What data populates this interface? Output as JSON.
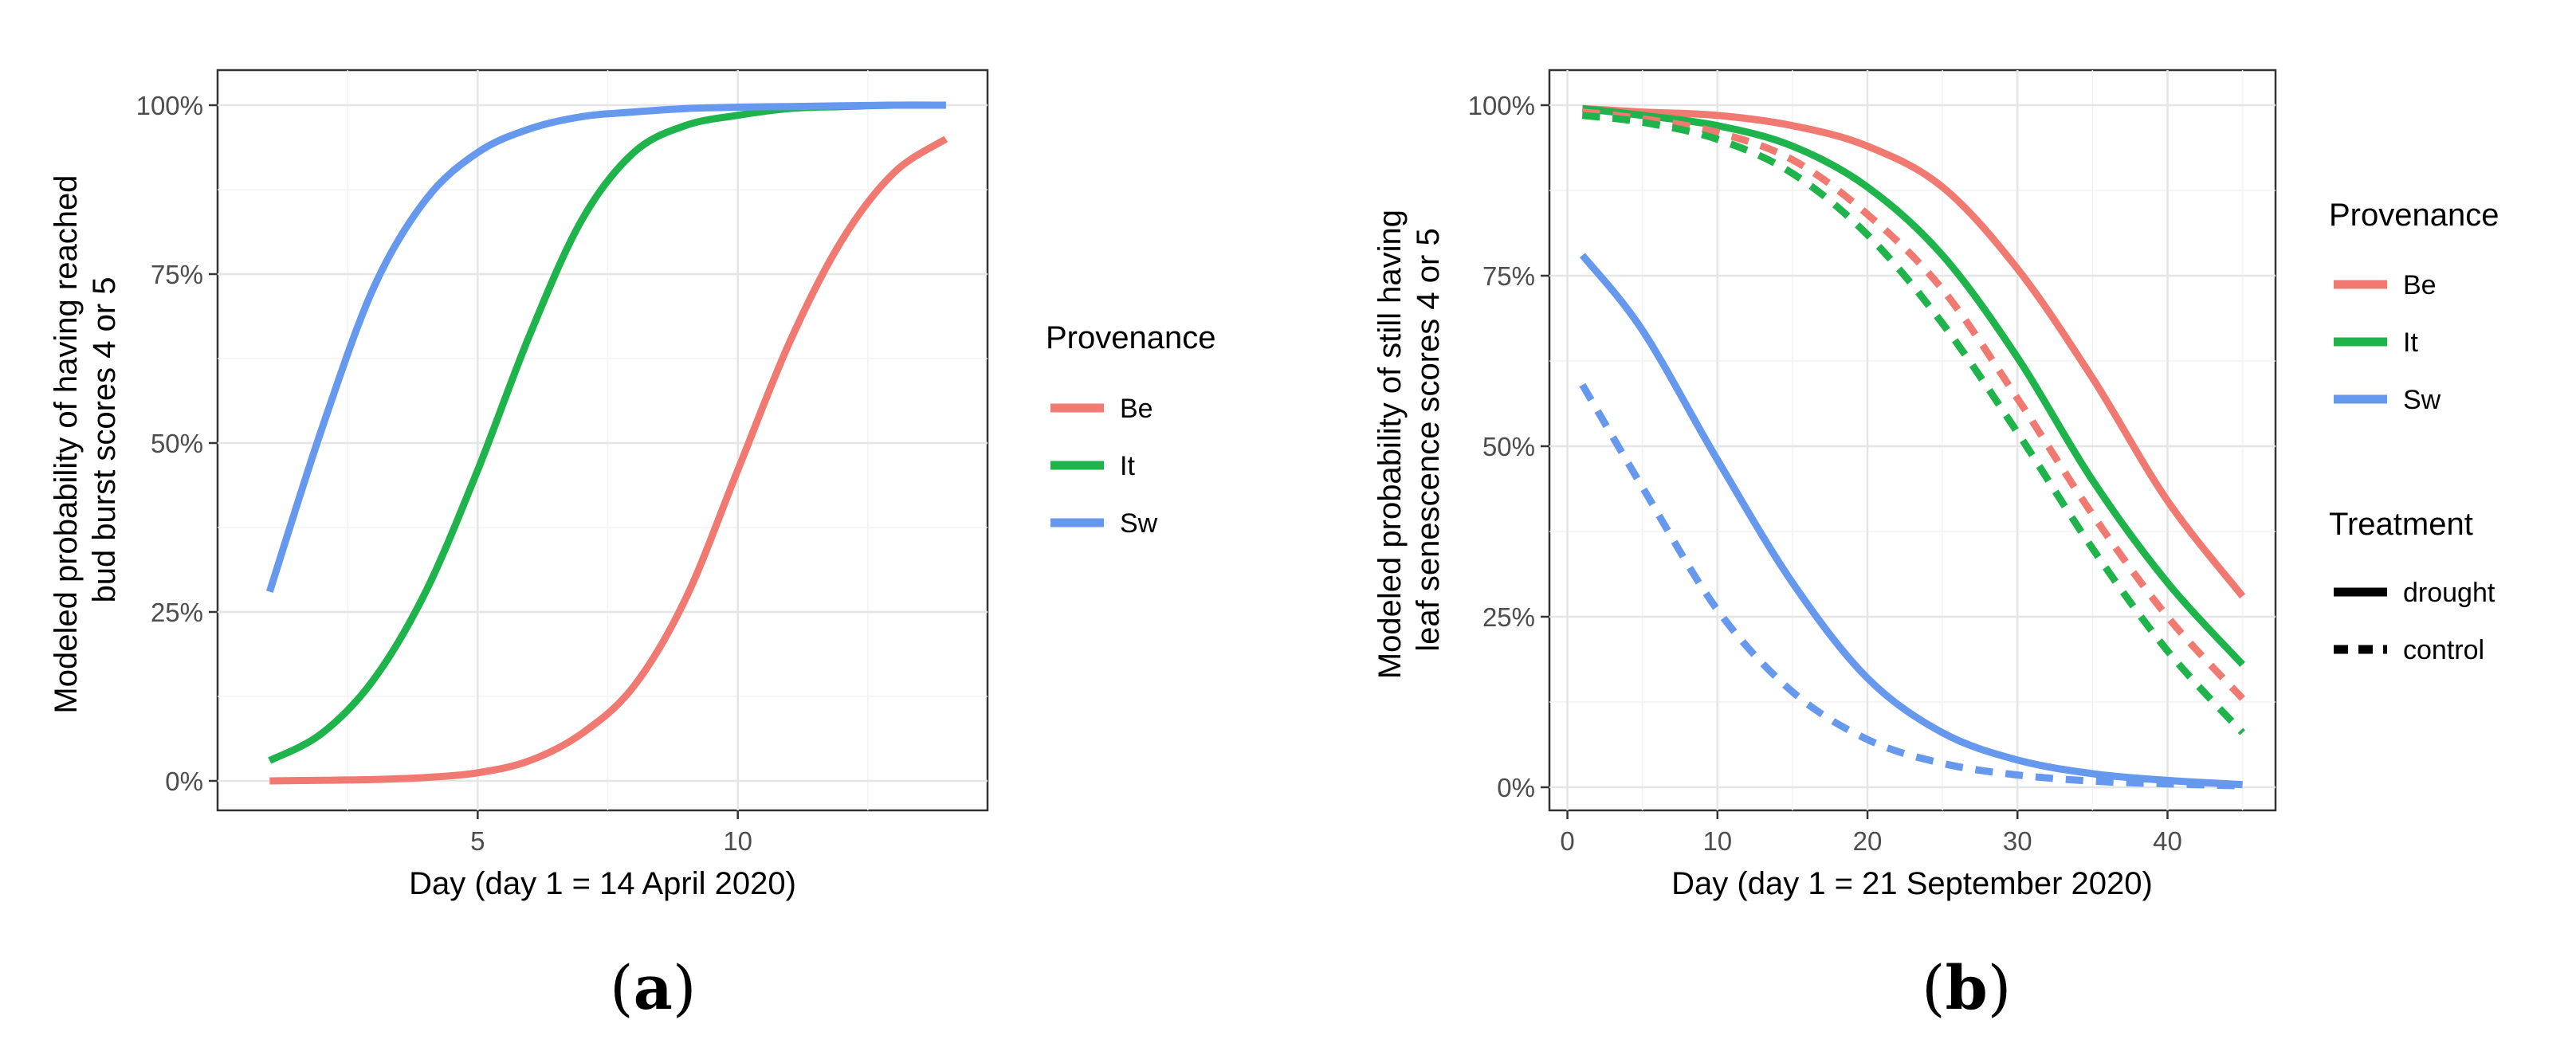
{
  "colors": {
    "Be": "#F07A72",
    "It": "#1FB34B",
    "Sw": "#6699EE"
  },
  "panel_a_label": {
    "open": "(",
    "letter": "a",
    "close": ")"
  },
  "panel_b_label": {
    "open": "(",
    "letter": "b",
    "close": ")"
  },
  "chart_data": [
    {
      "type": "line",
      "panel": "a",
      "title": "",
      "xlabel": "Day (day 1 = 14 April 2020)",
      "ylabel": [
        "Modeled probability of having reached",
        "bud burst scores 4 or 5"
      ],
      "xlim": [
        0,
        14.8
      ],
      "ylim": [
        0,
        1
      ],
      "xticks": [
        5,
        10
      ],
      "xtick_labels": [
        "5",
        "10"
      ],
      "yticks": [
        0,
        0.25,
        0.5,
        0.75,
        1
      ],
      "ytick_labels": [
        "0%",
        "25%",
        "50%",
        "75%",
        "100%"
      ],
      "grid": true,
      "legend": {
        "title": "Provenance",
        "position": "right",
        "entries": [
          "Be",
          "It",
          "Sw"
        ]
      },
      "series": [
        {
          "name": "Be",
          "linestyle": "solid",
          "x": [
            1,
            2,
            3,
            4,
            5,
            6,
            7,
            8,
            9,
            10,
            11,
            12,
            13,
            14
          ],
          "values": [
            0.0,
            0.001,
            0.002,
            0.005,
            0.012,
            0.03,
            0.07,
            0.14,
            0.27,
            0.46,
            0.65,
            0.8,
            0.9,
            0.95
          ]
        },
        {
          "name": "It",
          "linestyle": "solid",
          "x": [
            1,
            2,
            3,
            4,
            5,
            6,
            7,
            8,
            9,
            10,
            11,
            12,
            13,
            14
          ],
          "values": [
            0.03,
            0.07,
            0.15,
            0.28,
            0.46,
            0.66,
            0.83,
            0.93,
            0.97,
            0.985,
            0.995,
            0.998,
            1.0,
            1.0
          ]
        },
        {
          "name": "Sw",
          "linestyle": "solid",
          "x": [
            1,
            2,
            3,
            4,
            5,
            6,
            7,
            8,
            9,
            10,
            11,
            12,
            13,
            14
          ],
          "values": [
            0.28,
            0.52,
            0.73,
            0.86,
            0.93,
            0.965,
            0.983,
            0.99,
            0.995,
            0.997,
            0.998,
            0.999,
            1.0,
            1.0
          ]
        }
      ]
    },
    {
      "type": "line",
      "panel": "b",
      "title": "",
      "xlabel": "Day (day 1 = 21 September 2020)",
      "ylabel": [
        "Modeled probability of still having",
        "leaf senescence scores 4 or 5"
      ],
      "xlim": [
        -1.2,
        47.2
      ],
      "ylim": [
        0,
        1
      ],
      "xticks": [
        0,
        10,
        20,
        30,
        40
      ],
      "xtick_labels": [
        "0",
        "10",
        "20",
        "30",
        "40"
      ],
      "yticks": [
        0,
        0.25,
        0.5,
        0.75,
        1
      ],
      "ytick_labels": [
        "0%",
        "25%",
        "50%",
        "75%",
        "100%"
      ],
      "grid": true,
      "legend": {
        "title": "Provenance",
        "position": "right",
        "entries": [
          "Be",
          "It",
          "Sw"
        ]
      },
      "legend2": {
        "title": "Treatment",
        "entries": [
          "drought",
          "control"
        ]
      },
      "series": [
        {
          "name": "Be",
          "treatment": "drought",
          "linestyle": "solid",
          "x": [
            1,
            5,
            10,
            15,
            20,
            25,
            30,
            35,
            40,
            45
          ],
          "values": [
            0.995,
            0.99,
            0.985,
            0.97,
            0.94,
            0.88,
            0.76,
            0.6,
            0.42,
            0.28
          ]
        },
        {
          "name": "It",
          "treatment": "drought",
          "linestyle": "solid",
          "x": [
            1,
            5,
            10,
            15,
            20,
            25,
            30,
            35,
            40,
            45
          ],
          "values": [
            0.995,
            0.985,
            0.97,
            0.94,
            0.88,
            0.78,
            0.63,
            0.45,
            0.3,
            0.18
          ]
        },
        {
          "name": "Sw",
          "treatment": "drought",
          "linestyle": "solid",
          "x": [
            1,
            5,
            10,
            15,
            20,
            25,
            30,
            35,
            40,
            45
          ],
          "values": [
            0.78,
            0.67,
            0.48,
            0.3,
            0.16,
            0.08,
            0.04,
            0.02,
            0.01,
            0.004
          ]
        },
        {
          "name": "Be",
          "treatment": "control",
          "linestyle": "dashed",
          "x": [
            1,
            5,
            10,
            15,
            20,
            25,
            30,
            35,
            40,
            45
          ],
          "values": [
            0.99,
            0.98,
            0.96,
            0.92,
            0.84,
            0.73,
            0.57,
            0.4,
            0.25,
            0.13
          ]
        },
        {
          "name": "It",
          "treatment": "control",
          "linestyle": "dashed",
          "x": [
            1,
            5,
            10,
            15,
            20,
            25,
            30,
            35,
            40,
            45
          ],
          "values": [
            0.985,
            0.975,
            0.95,
            0.9,
            0.81,
            0.68,
            0.52,
            0.35,
            0.2,
            0.08
          ]
        },
        {
          "name": "Sw",
          "treatment": "control",
          "linestyle": "dashed",
          "x": [
            1,
            5,
            10,
            15,
            20,
            25,
            30,
            35,
            40,
            45
          ],
          "values": [
            0.59,
            0.44,
            0.26,
            0.14,
            0.07,
            0.035,
            0.018,
            0.009,
            0.005,
            0.002
          ]
        }
      ]
    }
  ]
}
